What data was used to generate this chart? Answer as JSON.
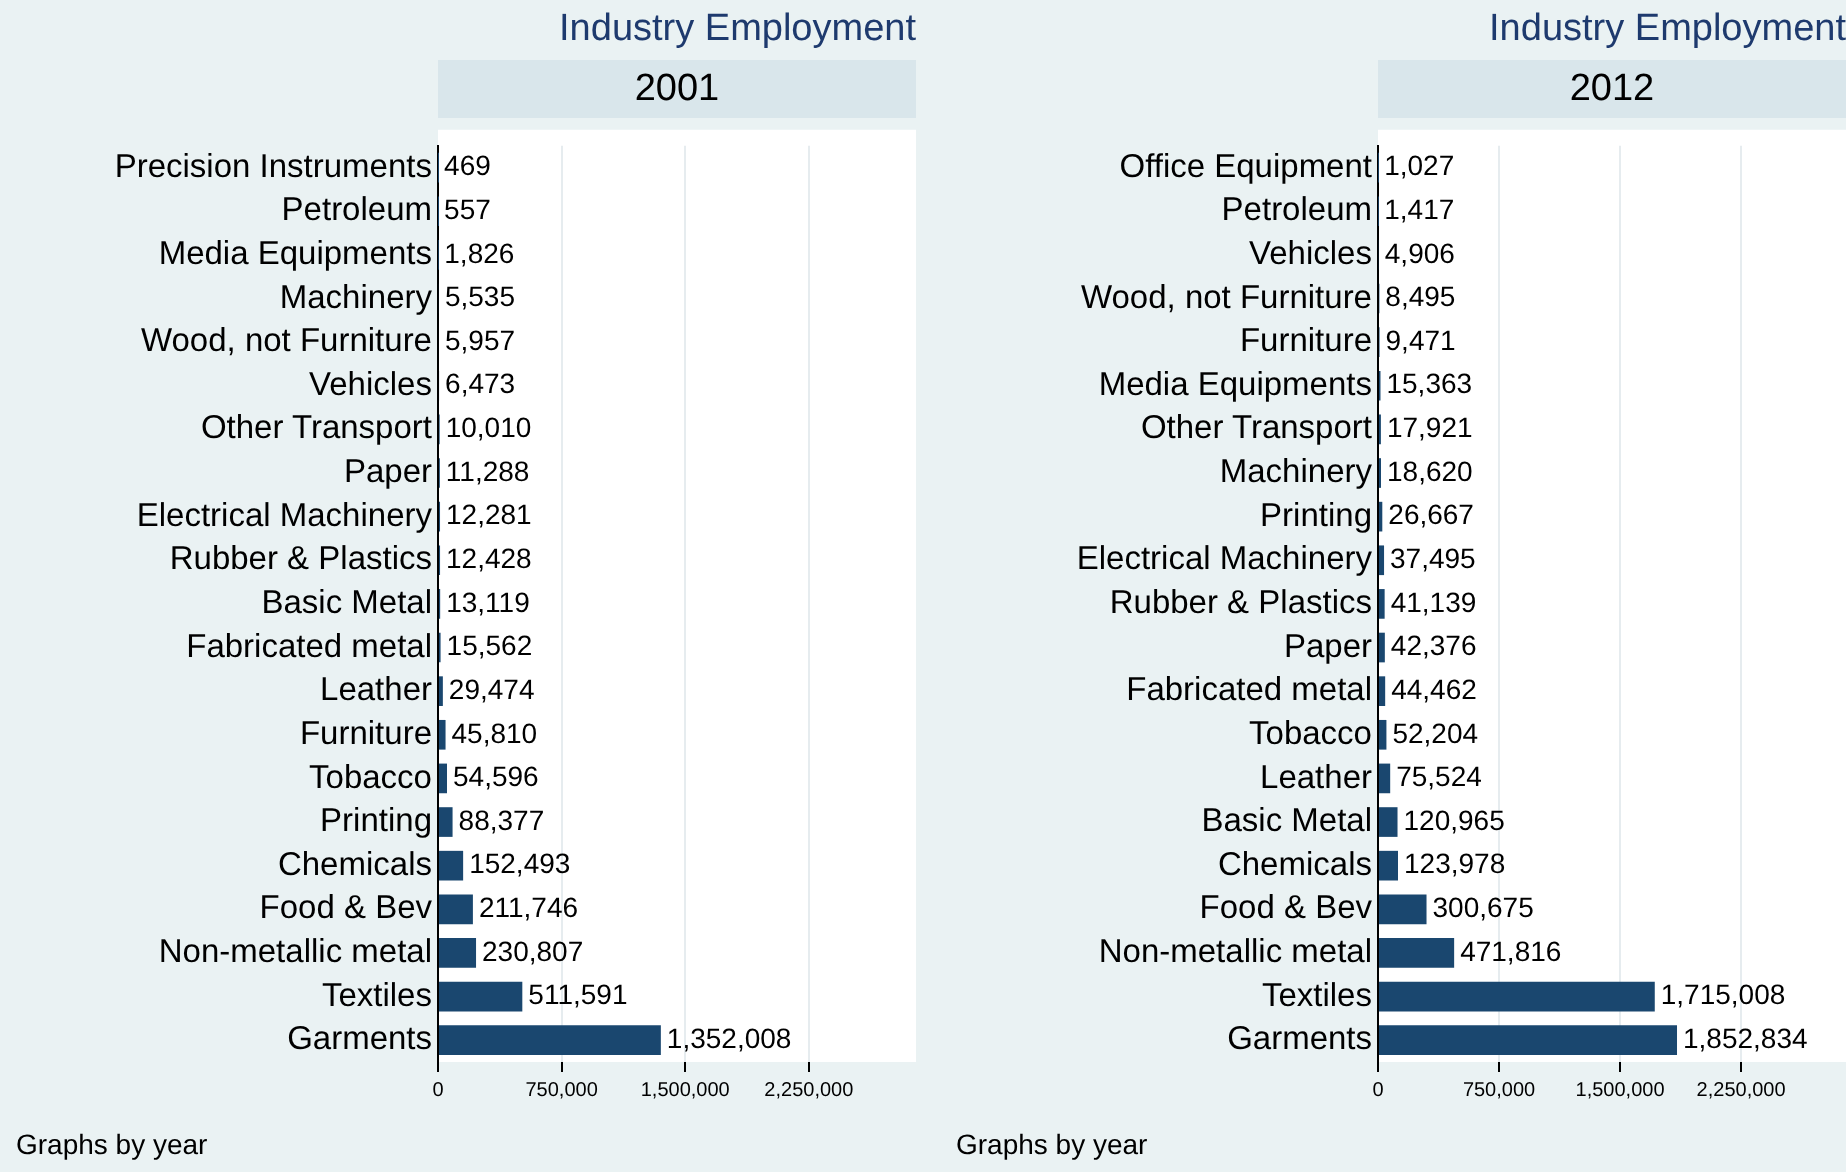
{
  "chart_data": [
    {
      "type": "bar",
      "orientation": "horizontal",
      "title": "Industry Employment",
      "subtitle": "2001",
      "categories": [
        "Precision Instruments",
        "Petroleum",
        "Media Equipments",
        "Machinery",
        "Wood, not Furniture",
        "Vehicles",
        "Other Transport",
        "Paper",
        "Electrical Machinery",
        "Rubber & Plastics",
        "Basic Metal",
        "Fabricated metal",
        "Leather",
        "Furniture",
        "Tobacco",
        "Printing",
        "Chemicals",
        "Food & Bev",
        "Non-metallic metal",
        "Textiles",
        "Garments"
      ],
      "values": [
        469,
        557,
        1826,
        5535,
        5957,
        6473,
        10010,
        11288,
        12281,
        12428,
        13119,
        15562,
        29474,
        45810,
        54596,
        88377,
        152493,
        211746,
        230807,
        511591,
        1352008
      ],
      "value_labels": [
        "469",
        "557",
        "1,826",
        "5,535",
        "5,957",
        "6,473",
        "10,010",
        "11,288",
        "12,281",
        "12,428",
        "13,119",
        "15,562",
        "29,474",
        "45,810",
        "54,596",
        "88,377",
        "152,493",
        "211,746",
        "230,807",
        "511,591",
        "1,352,008"
      ],
      "color": "#1a476f",
      "xlim": [
        0,
        2900000
      ],
      "xticks": [
        0,
        {
          "value": 750000,
          "label": "750,000"
        },
        {
          "value": 1500000,
          "label": "1,500,000"
        },
        {
          "value": 2250000,
          "label": "2,250,000"
        }
      ],
      "grid": "x",
      "annotations": [
        "Graphs by year"
      ]
    },
    {
      "type": "bar",
      "orientation": "horizontal",
      "title": "Industry Employment",
      "subtitle": "2012",
      "categories": [
        "Office Equipment",
        "Petroleum",
        "Vehicles",
        "Wood, not Furniture",
        "Furniture",
        "Media Equipments",
        "Other Transport",
        "Machinery",
        "Printing",
        "Electrical Machinery",
        "Rubber & Plastics",
        "Paper",
        "Fabricated metal",
        "Tobacco",
        "Leather",
        "Basic Metal",
        "Chemicals",
        "Food & Bev",
        "Non-metallic metal",
        "Textiles",
        "Garments"
      ],
      "values": [
        1027,
        1417,
        4906,
        8495,
        9471,
        15363,
        17921,
        18620,
        26667,
        37495,
        41139,
        42376,
        44462,
        52204,
        75524,
        120965,
        123978,
        300675,
        471816,
        1715008,
        1852834
      ],
      "value_labels": [
        "1,027",
        "1,417",
        "4,906",
        "8,495",
        "9,471",
        "15,363",
        "17,921",
        "18,620",
        "26,667",
        "37,495",
        "41,139",
        "42,376",
        "44,462",
        "52,204",
        "75,524",
        "120,965",
        "123,978",
        "300,675",
        "471,816",
        "1,715,008",
        "1,852,834"
      ],
      "color": "#1a476f",
      "xlim": [
        0,
        2900000
      ],
      "xticks": [
        0,
        {
          "value": 750000,
          "label": "750,000"
        },
        {
          "value": 1500000,
          "label": "1,500,000"
        },
        {
          "value": 2250000,
          "label": "2,250,000"
        }
      ],
      "grid": "x",
      "annotations": [
        "Graphs by year"
      ]
    }
  ]
}
